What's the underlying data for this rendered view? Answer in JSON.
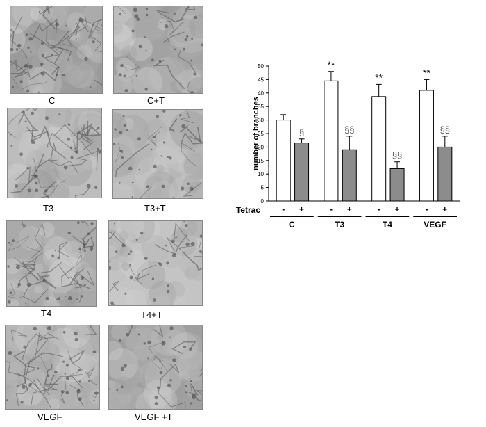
{
  "micrographs": [
    {
      "label": "C"
    },
    {
      "label": "C+T"
    },
    {
      "label": "T3"
    },
    {
      "label": "T3+T"
    },
    {
      "label": "T4"
    },
    {
      "label": "T4+T"
    },
    {
      "label": "VEGF"
    },
    {
      "label": "VEGF +T"
    }
  ],
  "chart_data": {
    "type": "bar",
    "ylabel": "number of branches",
    "ylim": [
      0,
      50
    ],
    "yticks": [
      0,
      5,
      10,
      15,
      20,
      25,
      30,
      35,
      40,
      45,
      50
    ],
    "row_label": "Tetrac",
    "groups": [
      "C",
      "T3",
      "T4",
      "VEGF"
    ],
    "bars": [
      {
        "group": "C",
        "tetrac": "-",
        "value": 30,
        "error": 2,
        "color": "#ffffff",
        "annotation": ""
      },
      {
        "group": "C",
        "tetrac": "+",
        "value": 21.5,
        "error": 1.5,
        "color": "#8c8c8c",
        "annotation": "§"
      },
      {
        "group": "T3",
        "tetrac": "-",
        "value": 44.5,
        "error": 3.5,
        "color": "#ffffff",
        "annotation": "**"
      },
      {
        "group": "T3",
        "tetrac": "+",
        "value": 19,
        "error": 5,
        "color": "#8c8c8c",
        "annotation": "§§"
      },
      {
        "group": "T4",
        "tetrac": "-",
        "value": 38.7,
        "error": 4.5,
        "color": "#ffffff",
        "annotation": "**"
      },
      {
        "group": "T4",
        "tetrac": "+",
        "value": 12,
        "error": 2.5,
        "color": "#8c8c8c",
        "annotation": "§§"
      },
      {
        "group": "VEGF",
        "tetrac": "-",
        "value": 41,
        "error": 4,
        "color": "#ffffff",
        "annotation": "**"
      },
      {
        "group": "VEGF",
        "tetrac": "+",
        "value": 20,
        "error": 4,
        "color": "#8c8c8c",
        "annotation": "§§"
      }
    ],
    "grid": false,
    "legend": "none"
  }
}
